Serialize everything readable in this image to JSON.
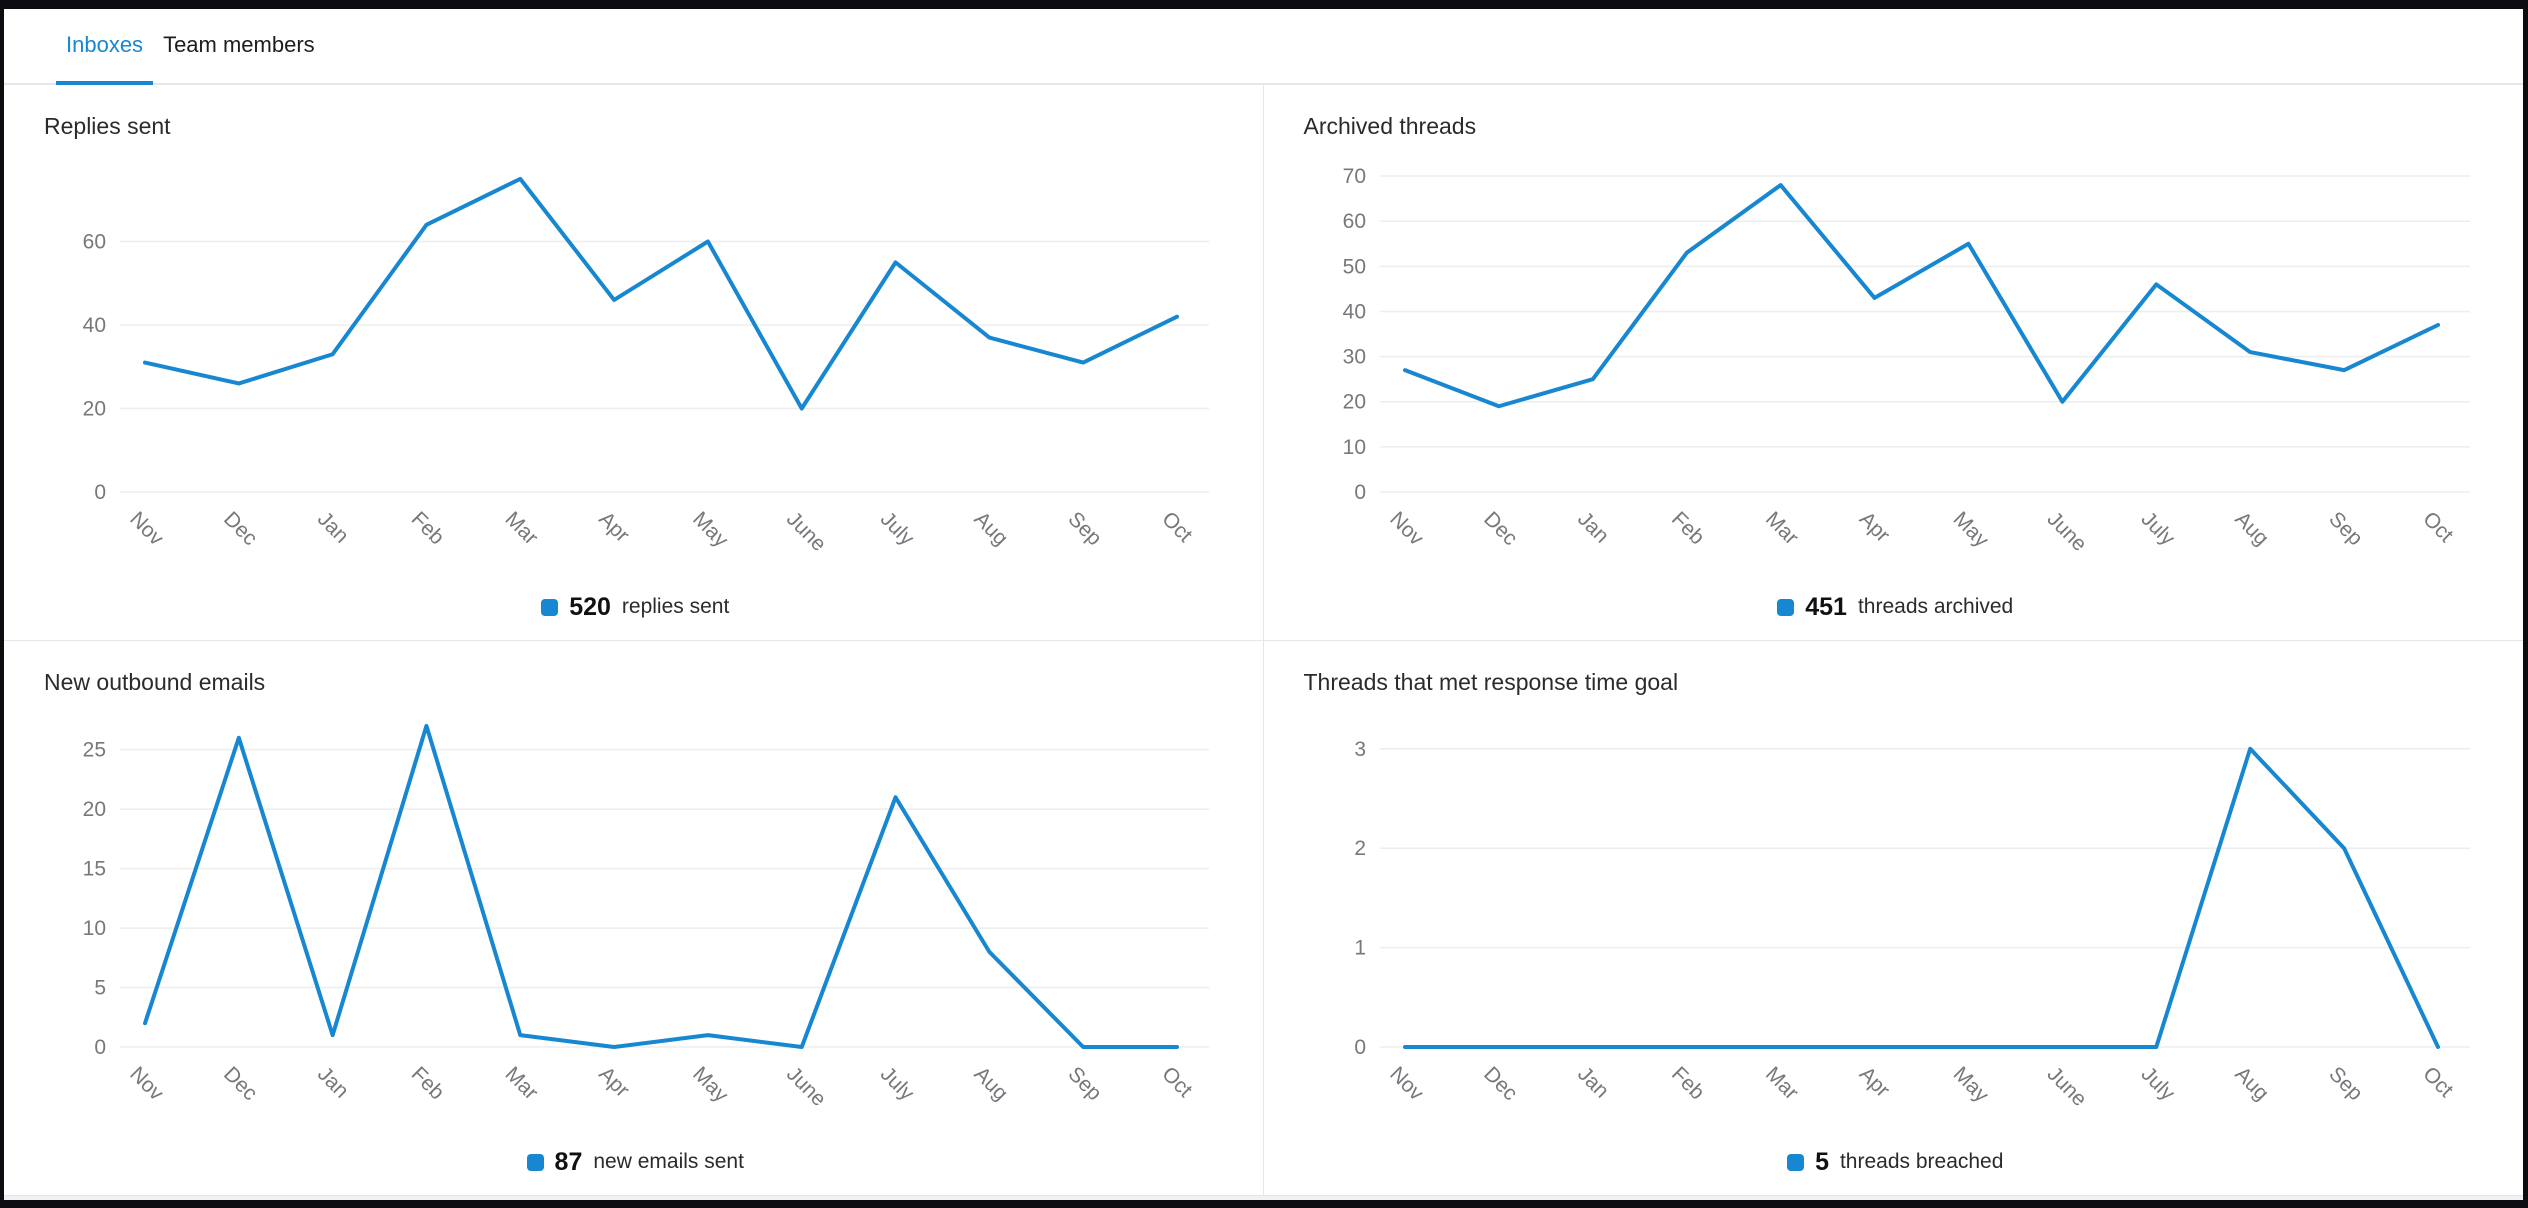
{
  "tabs": [
    {
      "label": "Inboxes",
      "active": true
    },
    {
      "label": "Team members",
      "active": false
    }
  ],
  "colors": {
    "accent": "#1787d1",
    "grid": "#ededed",
    "tick": "#77777c",
    "title": "#2b2b2d",
    "tab_inactive": "#1d1d1f",
    "divider": "#e7e7e9",
    "frame": "#0c0c11"
  },
  "chart_data": [
    {
      "type": "line",
      "title": "Replies sent",
      "categories": [
        "Nov",
        "Dec",
        "Jan",
        "Feb",
        "Mar",
        "Apr",
        "May",
        "June",
        "July",
        "Aug",
        "Sep",
        "Oct"
      ],
      "values": [
        31,
        26,
        33,
        64,
        75,
        46,
        60,
        20,
        55,
        37,
        31,
        42
      ],
      "yticks": [
        0,
        20,
        40,
        60
      ],
      "ylim": [
        0,
        80
      ],
      "grid": true,
      "legend_position": "bottom-center",
      "legend": {
        "value": "520",
        "label": "replies sent"
      }
    },
    {
      "type": "line",
      "title": "Archived threads",
      "categories": [
        "Nov",
        "Dec",
        "Jan",
        "Feb",
        "Mar",
        "Apr",
        "May",
        "June",
        "July",
        "Aug",
        "Sep",
        "Oct"
      ],
      "values": [
        27,
        19,
        25,
        53,
        68,
        43,
        55,
        20,
        46,
        31,
        27,
        37
      ],
      "yticks": [
        0,
        10,
        20,
        30,
        40,
        50,
        60,
        70
      ],
      "ylim": [
        0,
        74
      ],
      "grid": true,
      "legend_position": "bottom-center",
      "legend": {
        "value": "451",
        "label": "threads archived"
      }
    },
    {
      "type": "line",
      "title": "New outbound emails",
      "categories": [
        "Nov",
        "Dec",
        "Jan",
        "Feb",
        "Mar",
        "Apr",
        "May",
        "June",
        "July",
        "Aug",
        "Sep",
        "Oct"
      ],
      "values": [
        2,
        26,
        1,
        27,
        1,
        0,
        1,
        0,
        21,
        8,
        0,
        0
      ],
      "yticks": [
        0,
        5,
        10,
        15,
        20,
        25
      ],
      "ylim": [
        0,
        28
      ],
      "grid": true,
      "legend_position": "bottom-center",
      "legend": {
        "value": "87",
        "label": "new emails sent"
      }
    },
    {
      "type": "line",
      "title": "Threads that met response time goal",
      "categories": [
        "Nov",
        "Dec",
        "Jan",
        "Feb",
        "Mar",
        "Apr",
        "May",
        "June",
        "July",
        "Aug",
        "Sep",
        "Oct"
      ],
      "values": [
        0,
        0,
        0,
        0,
        0,
        0,
        0,
        0,
        0,
        3,
        2,
        0
      ],
      "yticks": [
        0,
        1,
        2,
        3
      ],
      "ylim": [
        0,
        3.35
      ],
      "grid": true,
      "legend_position": "bottom-center",
      "legend": {
        "value": "5",
        "label": "threads breached"
      }
    }
  ]
}
